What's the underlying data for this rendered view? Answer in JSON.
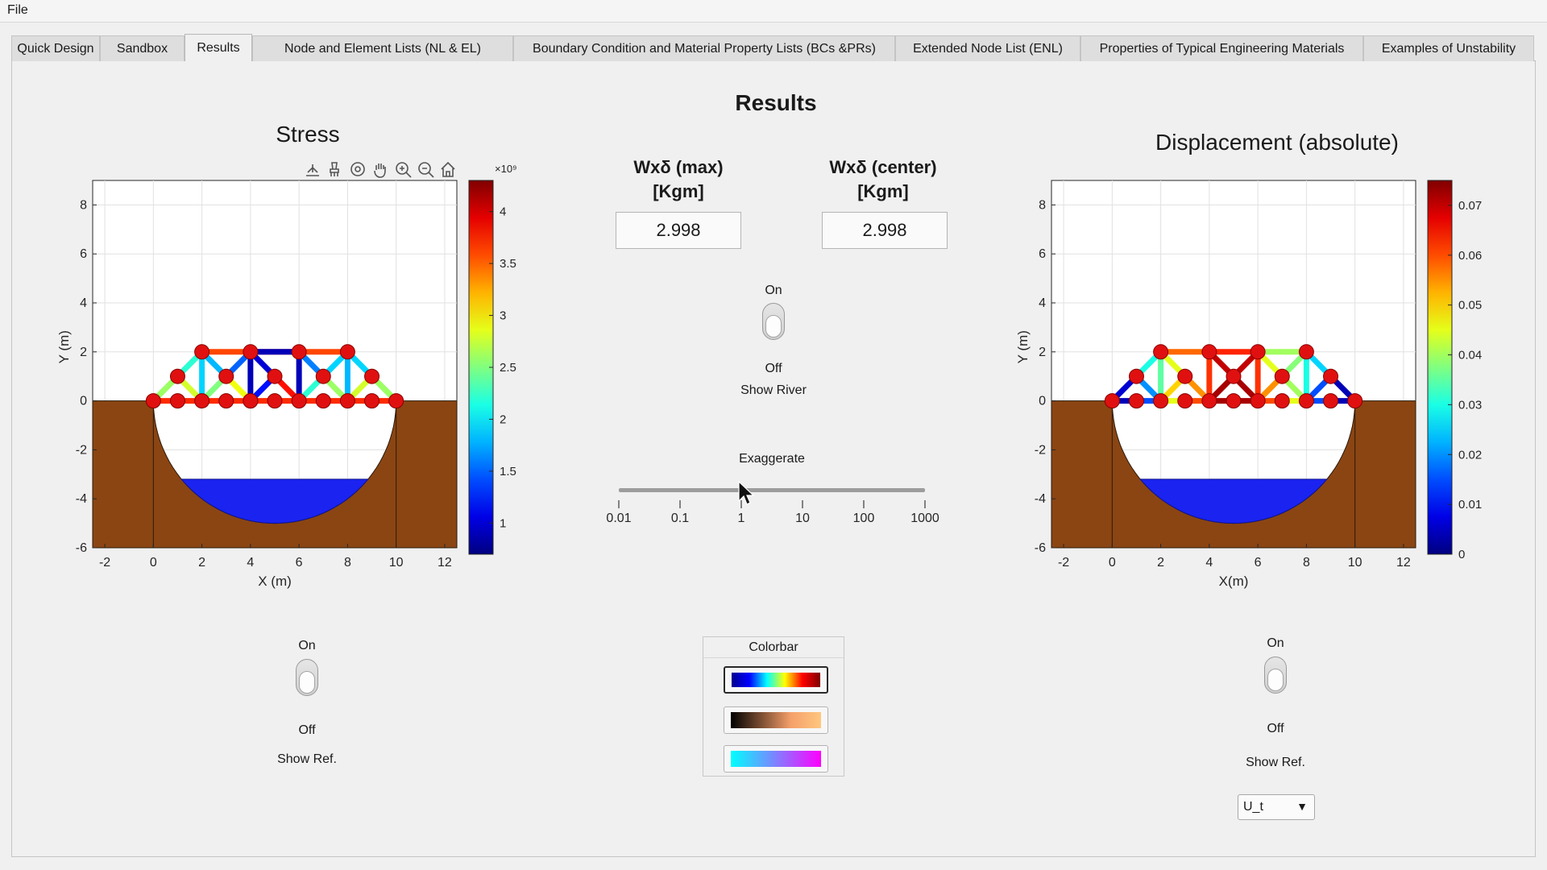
{
  "menu": {
    "file_label": "File"
  },
  "tabs": [
    {
      "label": "Quick Design"
    },
    {
      "label": "Sandbox"
    },
    {
      "label": "Results"
    },
    {
      "label": "Node and Element Lists (NL & EL)"
    },
    {
      "label": "Boundary Condition and Material Property Lists (BCs &PRs)"
    },
    {
      "label": "Extended Node List (ENL)"
    },
    {
      "label": "Properties of Typical Engineering Materials"
    },
    {
      "label": "Examples of Unstability"
    }
  ],
  "active_tab": "Results",
  "results": {
    "title": "Results",
    "max_label_line1": "Wxδ (max)",
    "max_label_line2": "[Kgm]",
    "max_value": "2.998",
    "center_label_line1": "Wxδ (center)",
    "center_label_line2": "[Kgm]",
    "center_value": "2.998",
    "river_toggle": {
      "on": "On",
      "off": "Off",
      "label": "Show River",
      "state": "off"
    },
    "exaggerate": {
      "label": "Exaggerate",
      "ticks": [
        "0.01",
        "0.1",
        "1",
        "10",
        "100",
        "1000"
      ],
      "value": 1
    },
    "colorbar_group": {
      "title": "Colorbar",
      "options": [
        "jet",
        "copper",
        "cool"
      ],
      "selected": "jet"
    }
  },
  "stress": {
    "title": "Stress",
    "toolbar_icons": [
      "export-icon",
      "brush-icon",
      "rotate-icon",
      "pan-icon",
      "zoom-in-icon",
      "zoom-out-icon",
      "home-icon"
    ],
    "ref_toggle": {
      "on": "On",
      "off": "Off",
      "label": "Show Ref.",
      "state": "off"
    }
  },
  "displacement": {
    "title": "Displacement (absolute)",
    "ref_toggle": {
      "on": "On",
      "off": "Off",
      "label": "Show Ref.",
      "state": "off"
    },
    "dropdown_value": "U_t"
  },
  "chart_data": [
    {
      "type": "scatter",
      "name": "stress-plot",
      "title": "Stress",
      "xlabel": "X (m)",
      "ylabel": "Y (m)",
      "xlim": [
        -2.5,
        12.5
      ],
      "ylim": [
        -6,
        9
      ],
      "xticks": [
        -2,
        0,
        2,
        4,
        6,
        8,
        10,
        12
      ],
      "yticks": [
        -6,
        -4,
        -2,
        0,
        2,
        4,
        6,
        8
      ],
      "grid": true,
      "colormap": "jet",
      "colorbar": {
        "min": 0.7,
        "max": 4.3,
        "ticks": [
          1,
          1.5,
          2,
          2.5,
          3,
          3.5,
          4
        ],
        "exponent_label": "×10⁹"
      },
      "ground_level": 0,
      "valley": {
        "x_left": 0,
        "x_right": 10,
        "depth": -5
      },
      "water_level": -3.2,
      "nodes": [
        [
          0,
          0
        ],
        [
          1,
          0
        ],
        [
          2,
          0
        ],
        [
          3,
          0
        ],
        [
          4,
          0
        ],
        [
          5,
          0
        ],
        [
          6,
          0
        ],
        [
          7,
          0
        ],
        [
          8,
          0
        ],
        [
          9,
          0
        ],
        [
          10,
          0
        ],
        [
          1,
          1
        ],
        [
          3,
          1
        ],
        [
          4,
          0
        ],
        [
          7,
          1
        ],
        [
          9,
          1
        ],
        [
          2,
          2
        ],
        [
          4,
          2
        ],
        [
          6,
          2
        ],
        [
          8,
          2
        ],
        [
          5,
          1
        ]
      ],
      "members": [
        {
          "from": [
            0,
            0
          ],
          "to": [
            10,
            0
          ],
          "value": 3.7
        },
        {
          "from": [
            2,
            2
          ],
          "to": [
            8,
            2
          ],
          "value": 3.6
        },
        {
          "from": [
            4,
            2
          ],
          "to": [
            6,
            2
          ],
          "value": 0.9
        },
        {
          "from": [
            0,
            0
          ],
          "to": [
            2,
            2
          ],
          "value": 2.4
        },
        {
          "from": [
            10,
            0
          ],
          "to": [
            8,
            2
          ],
          "value": 2.4
        },
        {
          "from": [
            0,
            0
          ],
          "to": [
            1,
            1
          ],
          "value": 2.6
        },
        {
          "from": [
            1,
            1
          ],
          "to": [
            2,
            0
          ],
          "value": 2.8
        },
        {
          "from": [
            1,
            1
          ],
          "to": [
            2,
            2
          ],
          "value": 2.2
        },
        {
          "from": [
            2,
            2
          ],
          "to": [
            2,
            0
          ],
          "value": 1.9
        },
        {
          "from": [
            2,
            2
          ],
          "to": [
            3,
            1
          ],
          "value": 1.8
        },
        {
          "from": [
            3,
            1
          ],
          "to": [
            2,
            0
          ],
          "value": 2.5
        },
        {
          "from": [
            3,
            1
          ],
          "to": [
            4,
            0
          ],
          "value": 2.9
        },
        {
          "from": [
            3,
            1
          ],
          "to": [
            4,
            2
          ],
          "value": 1.5
        },
        {
          "from": [
            4,
            2
          ],
          "to": [
            4,
            0
          ],
          "value": 0.9
        },
        {
          "from": [
            4,
            2
          ],
          "to": [
            5,
            1
          ],
          "value": 1.0
        },
        {
          "from": [
            5,
            1
          ],
          "to": [
            4,
            0
          ],
          "value": 1.2
        },
        {
          "from": [
            5,
            1
          ],
          "to": [
            6,
            0
          ],
          "value": 3.8
        },
        {
          "from": [
            6,
            2
          ],
          "to": [
            6,
            0
          ],
          "value": 0.9
        },
        {
          "from": [
            6,
            2
          ],
          "to": [
            7,
            1
          ],
          "value": 1.6
        },
        {
          "from": [
            7,
            1
          ],
          "to": [
            6,
            0
          ],
          "value": 2.2
        },
        {
          "from": [
            7,
            1
          ],
          "to": [
            8,
            0
          ],
          "value": 2.6
        },
        {
          "from": [
            7,
            1
          ],
          "to": [
            8,
            2
          ],
          "value": 1.9
        },
        {
          "from": [
            8,
            2
          ],
          "to": [
            8,
            0
          ],
          "value": 1.8
        },
        {
          "from": [
            8,
            2
          ],
          "to": [
            9,
            1
          ],
          "value": 1.9
        },
        {
          "from": [
            9,
            1
          ],
          "to": [
            8,
            0
          ],
          "value": 2.8
        },
        {
          "from": [
            9,
            1
          ],
          "to": [
            10,
            0
          ],
          "value": 2.6
        }
      ]
    },
    {
      "type": "scatter",
      "name": "displacement-plot",
      "title": "Displacement (absolute)",
      "xlabel": "X(m)",
      "ylabel": "Y (m)",
      "xlim": [
        -2.5,
        12.5
      ],
      "ylim": [
        -6,
        9
      ],
      "xticks": [
        -2,
        0,
        2,
        4,
        6,
        8,
        10,
        12
      ],
      "yticks": [
        -6,
        -4,
        -2,
        0,
        2,
        4,
        6,
        8
      ],
      "grid": true,
      "colormap": "jet",
      "colorbar": {
        "min": 0,
        "max": 0.075,
        "ticks": [
          0,
          0.01,
          0.02,
          0.03,
          0.04,
          0.05,
          0.06,
          0.07
        ]
      },
      "ground_level": 0,
      "valley": {
        "x_left": 0,
        "x_right": 10,
        "depth": -5
      },
      "water_level": -3.2,
      "nodes": [
        [
          0,
          0
        ],
        [
          1,
          0
        ],
        [
          2,
          0
        ],
        [
          3,
          0
        ],
        [
          4,
          0
        ],
        [
          5,
          0
        ],
        [
          6,
          0
        ],
        [
          7,
          0
        ],
        [
          8,
          0
        ],
        [
          9,
          0
        ],
        [
          10,
          0
        ],
        [
          1,
          1
        ],
        [
          3,
          1
        ],
        [
          5,
          1
        ],
        [
          7,
          1
        ],
        [
          9,
          1
        ],
        [
          2,
          2
        ],
        [
          4,
          2
        ],
        [
          6,
          2
        ],
        [
          8,
          2
        ]
      ],
      "members": [
        {
          "from": [
            0,
            0
          ],
          "to": [
            1,
            0
          ],
          "value": 0.004
        },
        {
          "from": [
            1,
            0
          ],
          "to": [
            2,
            0
          ],
          "value": 0.015
        },
        {
          "from": [
            2,
            0
          ],
          "to": [
            3,
            0
          ],
          "value": 0.045
        },
        {
          "from": [
            3,
            0
          ],
          "to": [
            4,
            0
          ],
          "value": 0.06
        },
        {
          "from": [
            4,
            0
          ],
          "to": [
            5,
            0
          ],
          "value": 0.072
        },
        {
          "from": [
            5,
            0
          ],
          "to": [
            6,
            0
          ],
          "value": 0.072
        },
        {
          "from": [
            6,
            0
          ],
          "to": [
            7,
            0
          ],
          "value": 0.06
        },
        {
          "from": [
            7,
            0
          ],
          "to": [
            8,
            0
          ],
          "value": 0.045
        },
        {
          "from": [
            8,
            0
          ],
          "to": [
            9,
            0
          ],
          "value": 0.015
        },
        {
          "from": [
            9,
            0
          ],
          "to": [
            10,
            0
          ],
          "value": 0.004
        },
        {
          "from": [
            2,
            2
          ],
          "to": [
            4,
            2
          ],
          "value": 0.058
        },
        {
          "from": [
            4,
            2
          ],
          "to": [
            6,
            2
          ],
          "value": 0.063
        },
        {
          "from": [
            6,
            2
          ],
          "to": [
            8,
            2
          ],
          "value": 0.04
        },
        {
          "from": [
            0,
            0
          ],
          "to": [
            1,
            1
          ],
          "value": 0.006
        },
        {
          "from": [
            1,
            1
          ],
          "to": [
            2,
            2
          ],
          "value": 0.03
        },
        {
          "from": [
            1,
            1
          ],
          "to": [
            2,
            0
          ],
          "value": 0.02
        },
        {
          "from": [
            2,
            2
          ],
          "to": [
            2,
            0
          ],
          "value": 0.035
        },
        {
          "from": [
            2,
            2
          ],
          "to": [
            3,
            1
          ],
          "value": 0.045
        },
        {
          "from": [
            3,
            1
          ],
          "to": [
            4,
            0
          ],
          "value": 0.055
        },
        {
          "from": [
            3,
            1
          ],
          "to": [
            2,
            0
          ],
          "value": 0.05
        },
        {
          "from": [
            4,
            2
          ],
          "to": [
            4,
            0
          ],
          "value": 0.062
        },
        {
          "from": [
            4,
            2
          ],
          "to": [
            5,
            1
          ],
          "value": 0.07
        },
        {
          "from": [
            5,
            1
          ],
          "to": [
            4,
            0
          ],
          "value": 0.072
        },
        {
          "from": [
            5,
            1
          ],
          "to": [
            6,
            0
          ],
          "value": 0.072
        },
        {
          "from": [
            6,
            2
          ],
          "to": [
            6,
            0
          ],
          "value": 0.062
        },
        {
          "from": [
            6,
            2
          ],
          "to": [
            5,
            1
          ],
          "value": 0.07
        },
        {
          "from": [
            6,
            2
          ],
          "to": [
            7,
            1
          ],
          "value": 0.045
        },
        {
          "from": [
            7,
            1
          ],
          "to": [
            6,
            0
          ],
          "value": 0.055
        },
        {
          "from": [
            7,
            1
          ],
          "to": [
            8,
            0
          ],
          "value": 0.04
        },
        {
          "from": [
            7,
            1
          ],
          "to": [
            8,
            2
          ],
          "value": 0.038
        },
        {
          "from": [
            8,
            2
          ],
          "to": [
            8,
            0
          ],
          "value": 0.03
        },
        {
          "from": [
            8,
            2
          ],
          "to": [
            9,
            1
          ],
          "value": 0.025
        },
        {
          "from": [
            9,
            1
          ],
          "to": [
            8,
            0
          ],
          "value": 0.015
        },
        {
          "from": [
            9,
            1
          ],
          "to": [
            10,
            0
          ],
          "value": 0.004
        }
      ]
    }
  ]
}
